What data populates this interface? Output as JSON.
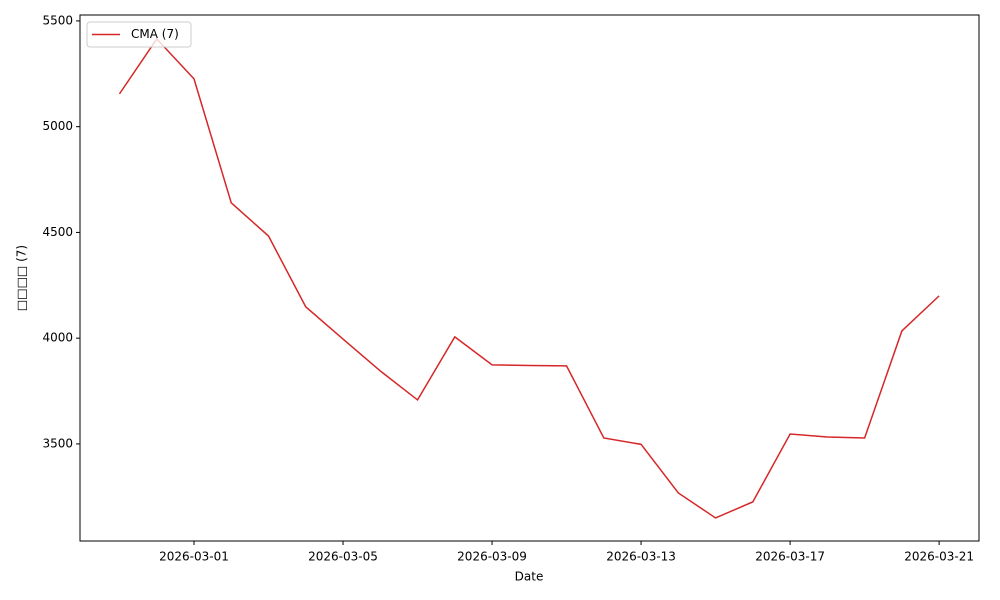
{
  "chart_data": {
    "type": "line",
    "x_label": "Date",
    "y_label": "□□□□ (7)",
    "x": [
      "2026-02-27",
      "2026-02-28",
      "2026-03-01",
      "2026-03-02",
      "2026-03-03",
      "2026-03-04",
      "2026-03-05",
      "2026-03-06",
      "2026-03-07",
      "2026-03-08",
      "2026-03-09",
      "2026-03-10",
      "2026-03-11",
      "2026-03-12",
      "2026-03-13",
      "2026-03-14",
      "2026-03-15",
      "2026-03-16",
      "2026-03-17",
      "2026-03-18",
      "2026-03-19",
      "2026-03-20",
      "2026-03-21"
    ],
    "series": [
      {
        "name": "CMA (7)",
        "color": "#d62728",
        "values": [
          5155,
          5415,
          5226,
          4640,
          4483,
          4148,
          3996,
          3845,
          3708,
          4006,
          3874,
          3871,
          3869,
          3528,
          3498,
          3268,
          3150,
          3226,
          3547,
          3533,
          3528,
          4034,
          4200
        ]
      }
    ],
    "xlim": [
      "2026-02-25T22:34",
      "2026-03-22T01:41"
    ],
    "xticks": [
      "2026-03-01",
      "2026-03-05",
      "2026-03-09",
      "2026-03-13",
      "2026-03-17",
      "2026-03-21"
    ],
    "ylim": [
      3041,
      5528
    ],
    "yticks": [
      3500,
      4000,
      4500,
      5000,
      5500
    ],
    "grid": false,
    "legend": "upper-left"
  }
}
